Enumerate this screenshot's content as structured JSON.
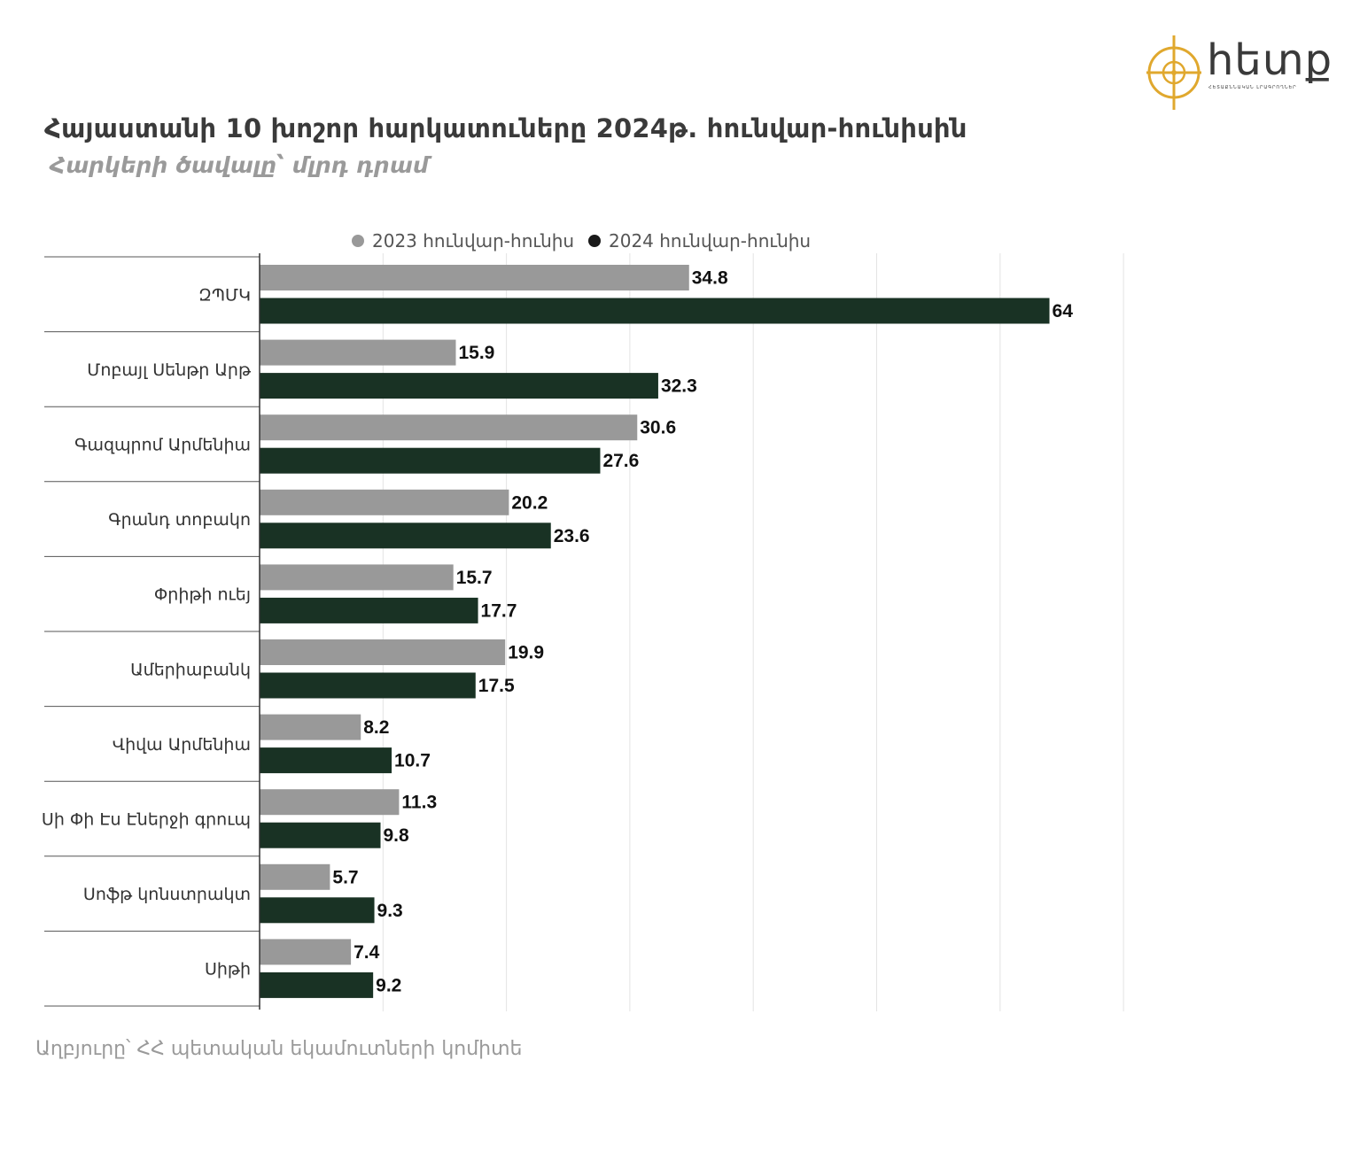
{
  "title": "Հայաստանի 10 խոշոր հարկատուները  2024թ. հունվար-հունիսին",
  "subtitle": "Հարկերի ծավալը՝ մլրդ դրամ",
  "source": "Աղբյուրը՝ ՀՀ պետական եկամուտների կոմիտե",
  "logo": {
    "text": "հետք",
    "tagline": "ՀԵՏԱՔՆՆԱԿԱՆ ԼՐԱԳՐՈՂՆԵՐ",
    "icon": "compass-logo-icon"
  },
  "colors": {
    "series_2023": "#999999",
    "series_2024": "#193224",
    "logo_accent": "#e0a82e"
  },
  "chart_data": {
    "type": "bar",
    "orientation": "horizontal",
    "categories": [
      "ԶՊՄԿ",
      "Մոբայլ Սենթր Արթ",
      "Գազպրոմ Արմենիա",
      "Գրանդ տոբակո",
      "Փրիթի ուեյ",
      "Ամերիաբանկ",
      "Վիվա Արմենիա",
      "Սի Փի Էս Էներջի գրուպ",
      "Սոֆթ կոնստրակտ",
      "Սիթի"
    ],
    "series": [
      {
        "name": "2023 հունվար-հունիս",
        "values": [
          34.8,
          15.9,
          30.6,
          20.2,
          15.7,
          19.9,
          8.2,
          11.3,
          5.7,
          7.4
        ]
      },
      {
        "name": "2024 հունվար-հունիս",
        "values": [
          64,
          32.3,
          27.6,
          23.6,
          17.7,
          17.5,
          10.7,
          9.8,
          9.3,
          9.2
        ]
      }
    ],
    "xlim": [
      0,
      70
    ],
    "grid": true,
    "legend": "top-center"
  }
}
